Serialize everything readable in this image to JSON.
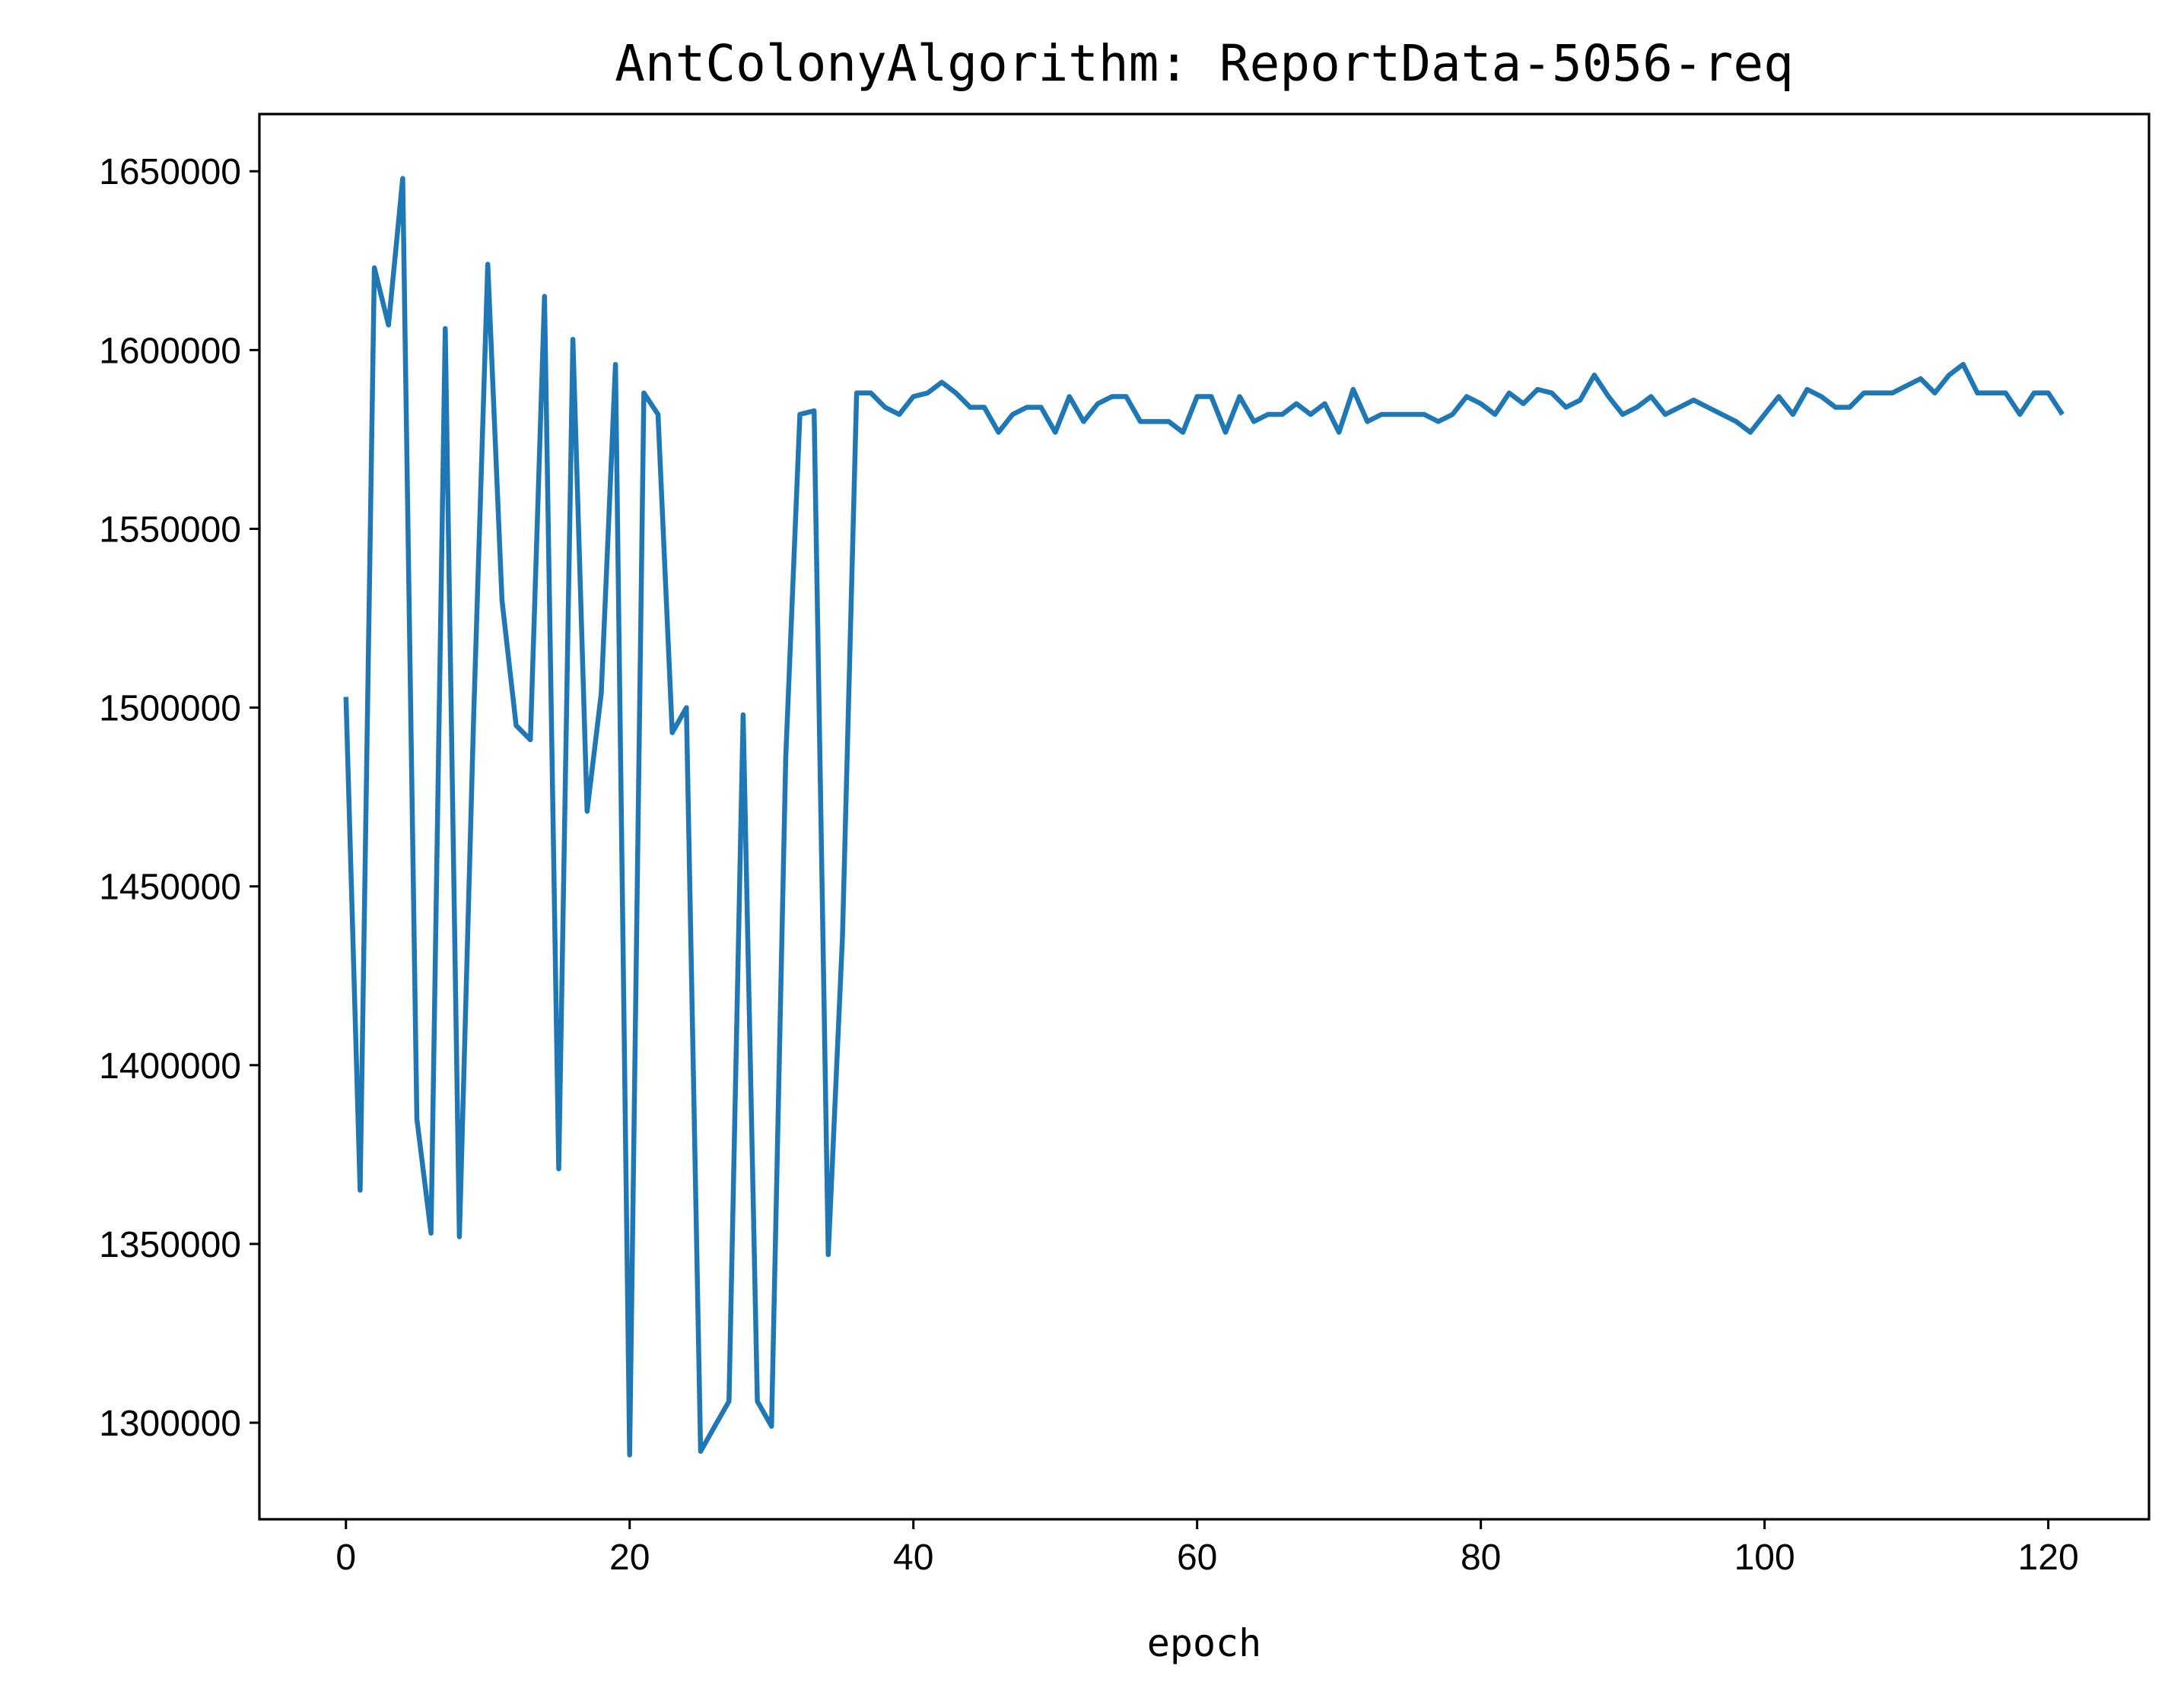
{
  "colors": {
    "series": "#1f77b4",
    "axis": "#000000",
    "background": "#ffffff"
  },
  "chart_data": {
    "type": "line",
    "title": "AntColonyAlgorithm: ReportData-5056-req",
    "xlabel": "epoch",
    "ylabel": "",
    "xlim": [
      -6.1,
      127.1
    ],
    "ylim": [
      1273000,
      1666000
    ],
    "grid": false,
    "legend": "none",
    "x_ticks": [
      0,
      20,
      40,
      60,
      80,
      100,
      120
    ],
    "x_tick_labels": [
      "0",
      "20",
      "40",
      "60",
      "80",
      "100",
      "120"
    ],
    "y_ticks": [
      1300000,
      1350000,
      1400000,
      1450000,
      1500000,
      1550000,
      1600000,
      1650000
    ],
    "y_tick_labels": [
      "1300000",
      "1350000",
      "1400000",
      "1450000",
      "1500000",
      "1550000",
      "1600000",
      "1650000"
    ],
    "series": [
      {
        "x": [
          0,
          1,
          2,
          3,
          4,
          5,
          6,
          7,
          8,
          9,
          10,
          11,
          12,
          13,
          14,
          15,
          16,
          17,
          18,
          19,
          20,
          21,
          22,
          23,
          24,
          25,
          26,
          27,
          28,
          29,
          30,
          31,
          32,
          33,
          34,
          35,
          36,
          37,
          38,
          39,
          40,
          41,
          42,
          43,
          44,
          45,
          46,
          47,
          48,
          49,
          50,
          51,
          52,
          53,
          54,
          55,
          56,
          57,
          58,
          59,
          60,
          61,
          62,
          63,
          64,
          65,
          66,
          67,
          68,
          69,
          70,
          71,
          72,
          73,
          74,
          75,
          76,
          77,
          78,
          79,
          80,
          81,
          82,
          83,
          84,
          85,
          86,
          87,
          88,
          89,
          90,
          91,
          92,
          93,
          94,
          95,
          96,
          97,
          98,
          99,
          100,
          101,
          102,
          103,
          104,
          105,
          106,
          107,
          108,
          109,
          110,
          111,
          112,
          113,
          114,
          115,
          116,
          117,
          118,
          119,
          120,
          121
        ],
        "values": [
          1503000,
          1365000,
          1623000,
          1607000,
          1648000,
          1385000,
          1353000,
          1606000,
          1352000,
          1497000,
          1624000,
          1530000,
          1495000,
          1491000,
          1615000,
          1371000,
          1603000,
          1471000,
          1504000,
          1596000,
          1291000,
          1588000,
          1582000,
          1493000,
          1500000,
          1292000,
          1299000,
          1306000,
          1498000,
          1306000,
          1299000,
          1486000,
          1582000,
          1583000,
          1347000,
          1436000,
          1588000,
          1588000,
          1584000,
          1582000,
          1587000,
          1588000,
          1591000,
          1588000,
          1584000,
          1584000,
          1577000,
          1582000,
          1584000,
          1584000,
          1577000,
          1587000,
          1580000,
          1585000,
          1587000,
          1587000,
          1580000,
          1580000,
          1580000,
          1577000,
          1587000,
          1587000,
          1577000,
          1587000,
          1580000,
          1582000,
          1582000,
          1585000,
          1582000,
          1585000,
          1577000,
          1589000,
          1580000,
          1582000,
          1582000,
          1582000,
          1582000,
          1580000,
          1582000,
          1587000,
          1585000,
          1582000,
          1588000,
          1585000,
          1589000,
          1588000,
          1584000,
          1586000,
          1593000,
          1587000,
          1582000,
          1584000,
          1587000,
          1582000,
          1584000,
          1586000,
          1584000,
          1582000,
          1580000,
          1577000,
          1582000,
          1587000,
          1582000,
          1589000,
          1587000,
          1584000,
          1584000,
          1588000,
          1588000,
          1588000,
          1590000,
          1592000,
          1588000,
          1593000,
          1596000,
          1588000,
          1588000,
          1588000,
          1582000,
          1588000,
          1588000,
          1582000
        ]
      }
    ]
  }
}
